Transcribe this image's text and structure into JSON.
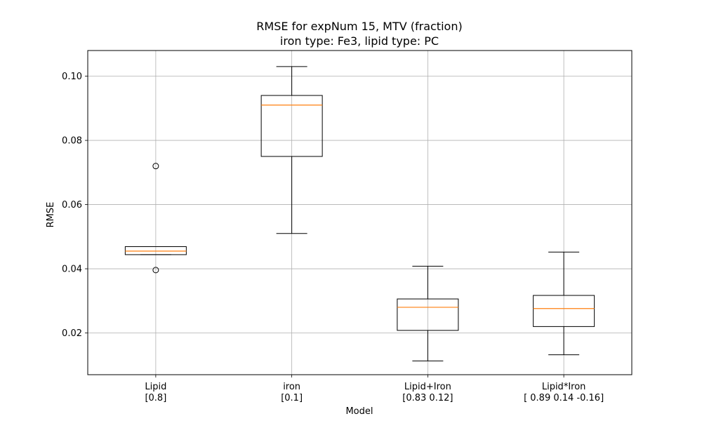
{
  "chart_data": {
    "type": "boxplot",
    "title": "RMSE for expNum 15, MTV (fraction)",
    "subtitle": "iron type: Fe3, lipid type: PC",
    "xlabel": "Model",
    "ylabel": "RMSE",
    "ylim": [
      0.007,
      0.108
    ],
    "yticks": [
      "0.02",
      "0.04",
      "0.06",
      "0.08",
      "0.10"
    ],
    "grid": true,
    "colors": {
      "box": "#000000",
      "median": "#ff7f0e",
      "grid": "#b0b0b0"
    },
    "categories": [
      {
        "line1": "Lipid",
        "line2": "[0.8]"
      },
      {
        "line1": "iron",
        "line2": "[0.1]"
      },
      {
        "line1": "Lipid+Iron",
        "line2": "[0.83 0.12]"
      },
      {
        "line1": "Lipid*Iron",
        "line2": "[ 0.89  0.14 -0.16]"
      }
    ],
    "boxes": [
      {
        "whisker_low": 0.0444,
        "q1": 0.0444,
        "median": 0.0455,
        "q3": 0.0469,
        "whisker_high": 0.0469,
        "outliers": [
          0.072,
          0.0396
        ]
      },
      {
        "whisker_low": 0.051,
        "q1": 0.075,
        "median": 0.091,
        "q3": 0.094,
        "whisker_high": 0.103,
        "outliers": []
      },
      {
        "whisker_low": 0.0113,
        "q1": 0.0208,
        "median": 0.028,
        "q3": 0.0306,
        "whisker_high": 0.0408,
        "outliers": []
      },
      {
        "whisker_low": 0.0132,
        "q1": 0.022,
        "median": 0.0276,
        "q3": 0.0317,
        "whisker_high": 0.0452,
        "outliers": []
      }
    ]
  }
}
